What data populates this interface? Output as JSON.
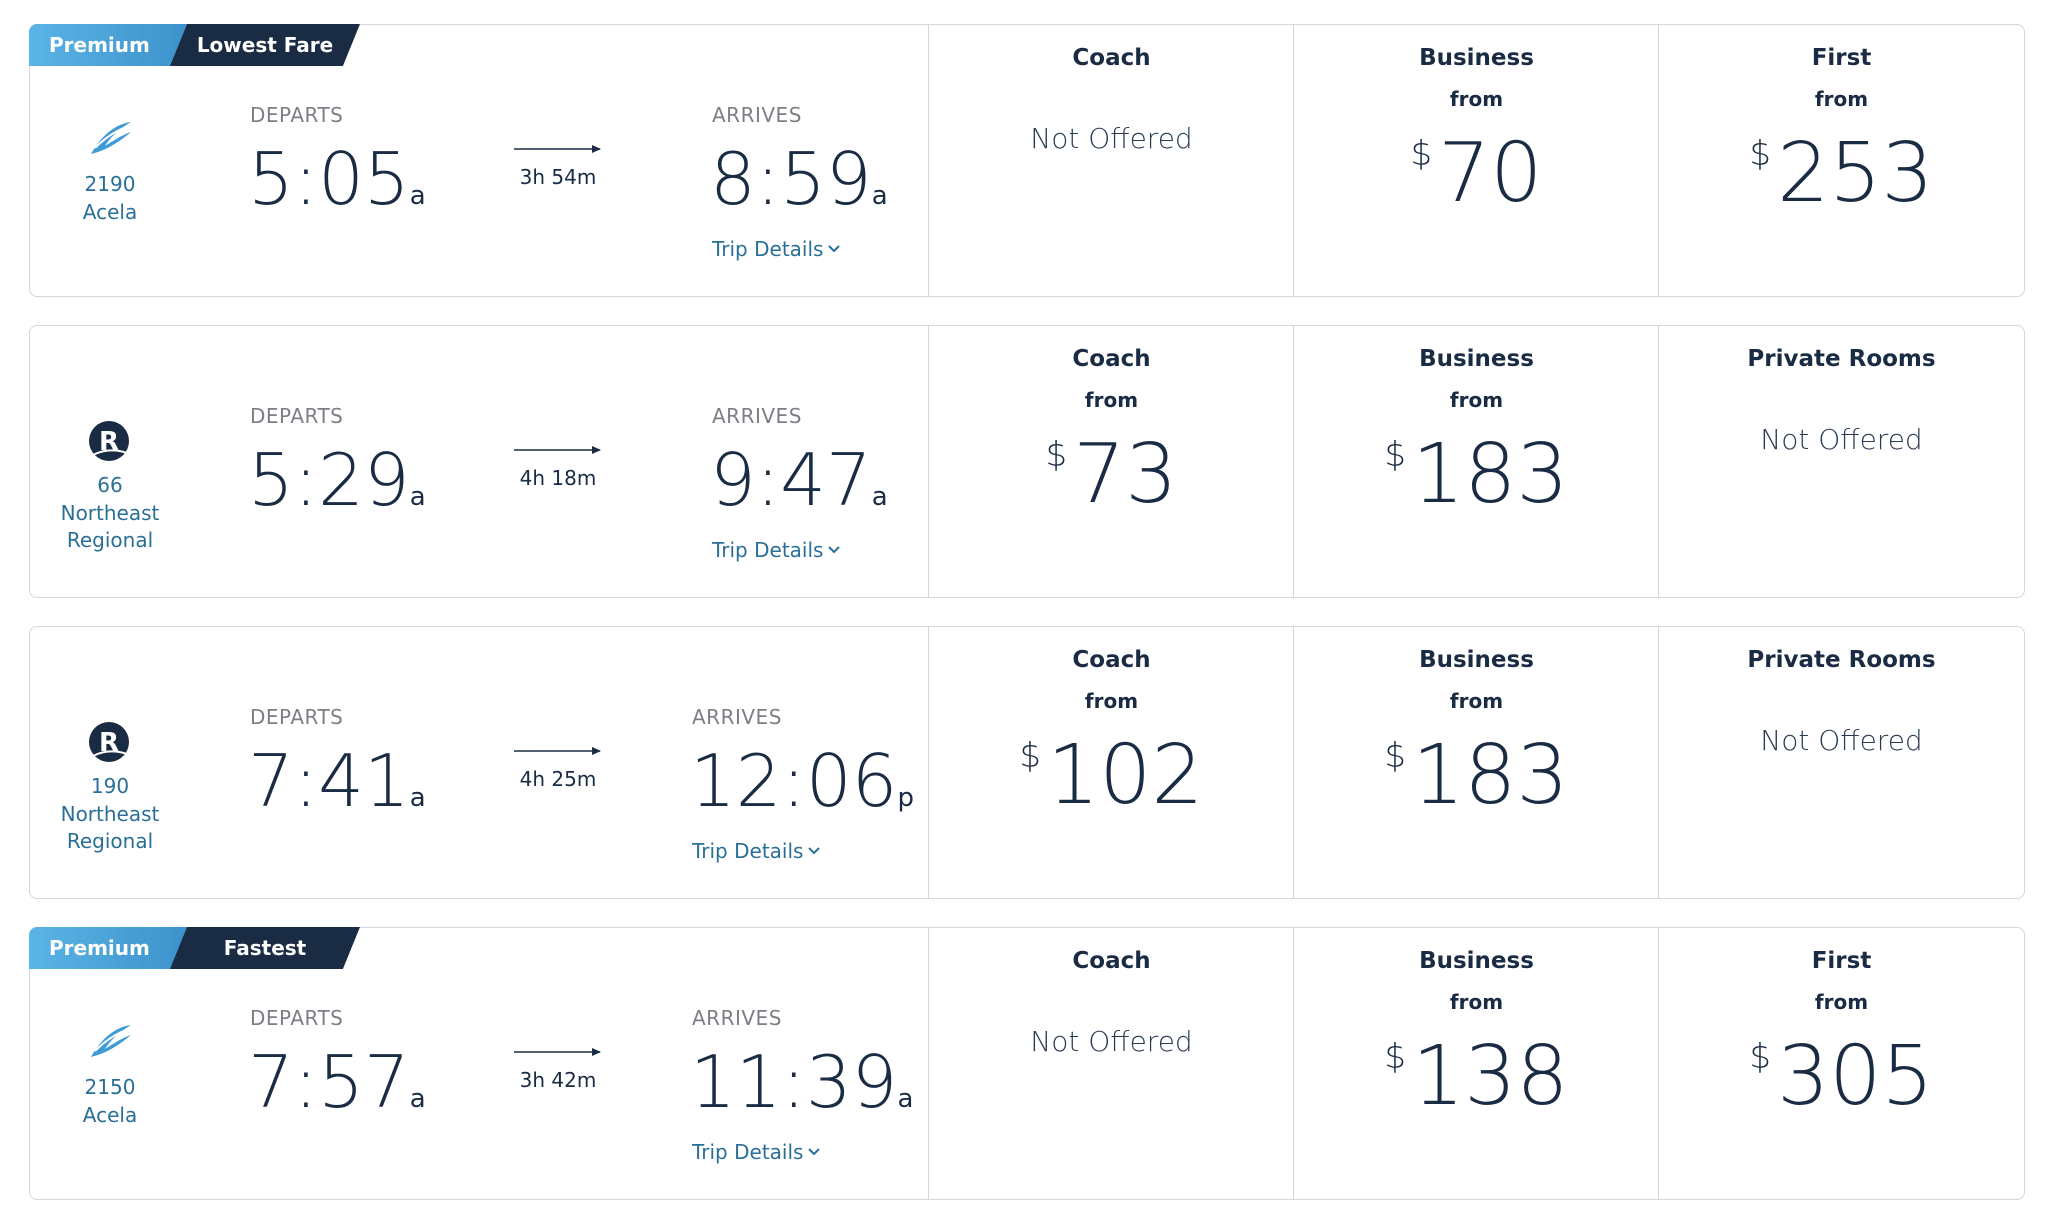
{
  "trains": [
    {
      "badges": [
        "Premium",
        "Lowest Fare"
      ],
      "number": "2190",
      "name": "Acela",
      "departs_label": "DEPARTS",
      "depart": "5:05",
      "depart_suffix": "a",
      "duration": "3h 54m",
      "arrives_label": "ARRIVES",
      "arrive": "8:59",
      "arrive_suffix": "a",
      "details": "Trip Details",
      "fares": [
        {
          "class": "Coach",
          "status": "Not Offered"
        },
        {
          "class": "Business",
          "from": "from",
          "currency": "$",
          "price": 70
        },
        {
          "class": "First",
          "from": "from",
          "currency": "$",
          "price": 253
        }
      ]
    },
    {
      "badges": [],
      "number": "66",
      "name": "Northeast Regional",
      "departs_label": "DEPARTS",
      "depart": "5:29",
      "depart_suffix": "a",
      "duration": "4h 18m",
      "arrives_label": "ARRIVES",
      "arrive": "9:47",
      "arrive_suffix": "a",
      "details": "Trip Details",
      "fares": [
        {
          "class": "Coach",
          "from": "from",
          "currency": "$",
          "price": 73
        },
        {
          "class": "Business",
          "from": "from",
          "currency": "$",
          "price": 183
        },
        {
          "class": "Private Rooms",
          "status": "Not Offered"
        }
      ]
    },
    {
      "badges": [],
      "number": "190",
      "name": "Northeast Regional",
      "departs_label": "DEPARTS",
      "depart": "7:41",
      "depart_suffix": "a",
      "duration": "4h 25m",
      "arrives_label": "ARRIVES",
      "arrive": "12:06",
      "arrive_suffix": "p",
      "details": "Trip Details",
      "fares": [
        {
          "class": "Coach",
          "from": "from",
          "currency": "$",
          "price": 102
        },
        {
          "class": "Business",
          "from": "from",
          "currency": "$",
          "price": 183
        },
        {
          "class": "Private Rooms",
          "status": "Not Offered"
        }
      ]
    },
    {
      "badges": [
        "Premium",
        "Fastest"
      ],
      "number": "2150",
      "name": "Acela",
      "departs_label": "DEPARTS",
      "depart": "7:57",
      "depart_suffix": "a",
      "duration": "3h 42m",
      "arrives_label": "ARRIVES",
      "arrive": "11:39",
      "arrive_suffix": "a",
      "details": "Trip Details",
      "fares": [
        {
          "class": "Coach",
          "status": "Not Offered"
        },
        {
          "class": "Business",
          "from": "from",
          "currency": "$",
          "price": 138
        },
        {
          "class": "First",
          "from": "from",
          "currency": "$",
          "price": 305
        }
      ]
    }
  ]
}
